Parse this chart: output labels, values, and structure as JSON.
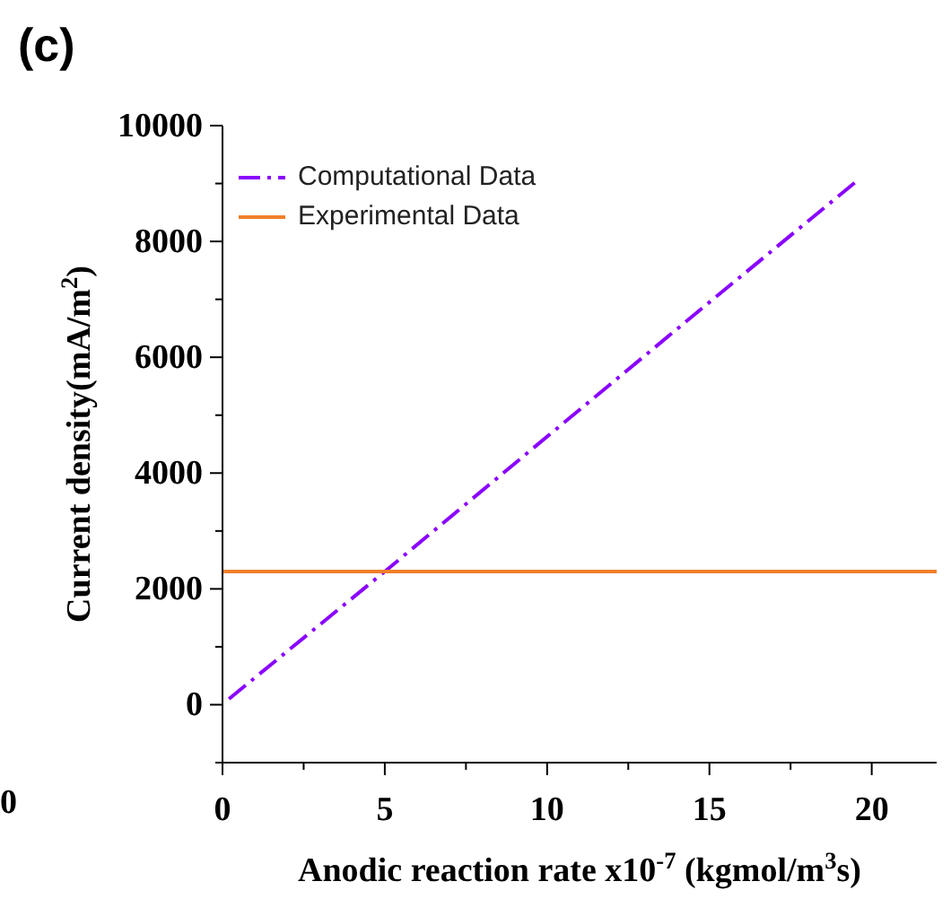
{
  "chart_data": {
    "type": "line",
    "title": "(c)",
    "xlabel": "Anodic reaction rate x10$^{-7}$ (kgmol/m$^{3}$s)",
    "ylabel": "Current density(mA/m$^{2}$)",
    "annotations": [
      "0"
    ],
    "xlim": [
      0,
      22
    ],
    "xticks": [
      0,
      {
        "value": 2.5,
        "label": null
      },
      5,
      {
        "value": 7.5,
        "label": null
      },
      10,
      {
        "value": 12.5,
        "label": null
      },
      15,
      {
        "value": 17.5,
        "label": null
      },
      20
    ],
    "ylim": [
      -1000,
      10000
    ],
    "yticks": [
      {
        "value": -1000,
        "label": null
      },
      0,
      {
        "value": 1000,
        "label": null
      },
      2000,
      {
        "value": 3000,
        "label": null
      },
      4000,
      {
        "value": 5000,
        "label": null
      },
      6000,
      {
        "value": 7000,
        "label": null
      },
      8000,
      {
        "value": 9000,
        "label": null
      },
      10000
    ],
    "legend": "top left",
    "marker": "none",
    "grid": false,
    "series": [
      {
        "name": "Computational Data",
        "color": "#8a00ff",
        "line_style": "dashed",
        "x": [
          0.2,
          5,
          9.7,
          15,
          19.6
        ],
        "values": [
          100,
          2300,
          4490,
          6950,
          9070
        ]
      },
      {
        "name": "Experimental Data",
        "color": "#f07f2a",
        "line_style": "solid",
        "x": [
          0,
          22
        ],
        "values": [
          2300,
          2300
        ]
      }
    ]
  }
}
